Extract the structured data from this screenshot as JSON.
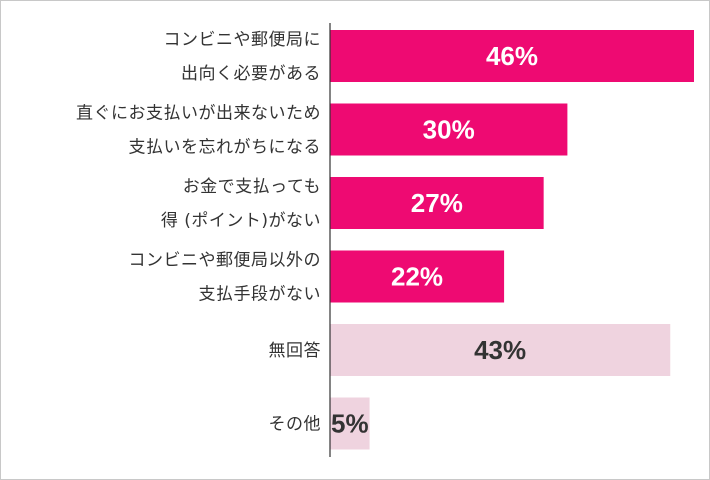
{
  "chart_data": {
    "type": "bar",
    "orientation": "horizontal",
    "categories": [
      [
        "コンビニや郵便局に",
        "出向く必要がある"
      ],
      [
        "直ぐにお支払いが出来ないため",
        "支払いを忘れがちになる"
      ],
      [
        "お金で支払っても",
        "得 (ポイント)がない"
      ],
      [
        "コンビニや郵便局以外の",
        "支払手段がない"
      ],
      [
        "無回答"
      ],
      [
        "その他"
      ]
    ],
    "values": [
      46,
      30,
      27,
      22,
      43,
      5
    ],
    "value_labels": [
      "46%",
      "30%",
      "27%",
      "22%",
      "43%",
      "5%"
    ],
    "title": "",
    "xlabel": "",
    "ylabel": "",
    "xlim": [
      0,
      46
    ],
    "grid": false,
    "legend": "none",
    "colors": {
      "primary": "#ee0a72",
      "muted": "#efd3df",
      "label_on_primary": "#ffffff",
      "label_on_muted": "#333333",
      "axis": "#333333"
    },
    "muted_categories": [
      "無回答",
      "その他"
    ]
  }
}
